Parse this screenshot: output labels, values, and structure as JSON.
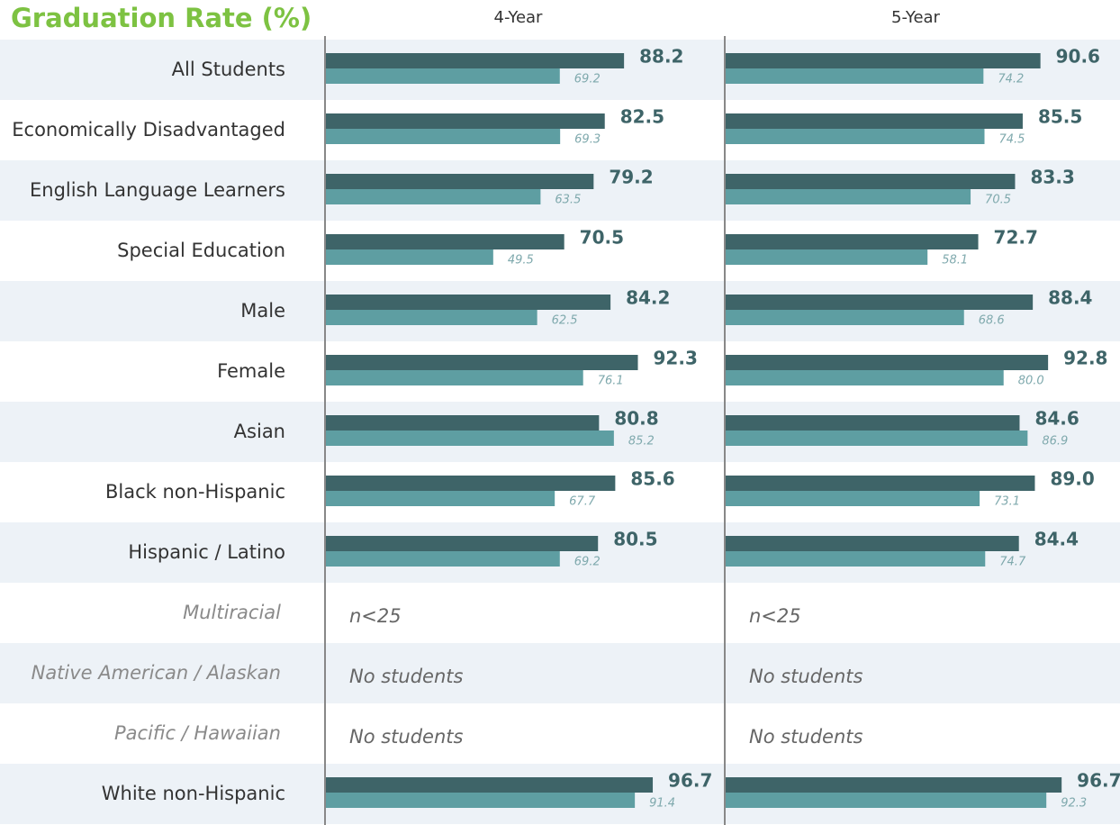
{
  "chart_data": {
    "type": "bar",
    "orientation": "horizontal",
    "title": "Graduation Rate (%)",
    "categories": [
      "All Students",
      "Economically Disadvantaged",
      "English Language Learners",
      "Special Education",
      "Male",
      "Female",
      "Asian",
      "Black non-Hispanic",
      "Hispanic / Latino",
      "Multiracial",
      "Native American / Alaskan",
      "Pacific / Hawaiian",
      "White non-Hispanic"
    ],
    "panels": [
      {
        "title": "4-Year",
        "xlim": [
          0,
          118
        ],
        "series": [
          {
            "color": "#3e6468",
            "values": [
              88.2,
              82.5,
              79.2,
              70.5,
              84.2,
              92.3,
              80.8,
              85.6,
              80.5,
              null,
              null,
              null,
              96.7
            ]
          },
          {
            "color": "#5e9ea2",
            "values": [
              69.2,
              69.3,
              63.5,
              49.5,
              62.5,
              76.1,
              85.2,
              67.7,
              69.2,
              null,
              null,
              null,
              91.4
            ],
            "value_labels": [
              "69.2",
              "69.3",
              "63.5",
              "49.5",
              "62.5",
              "76.1",
              "85.2",
              "67.7",
              "69.2",
              null,
              null,
              null,
              "91.4"
            ]
          }
        ],
        "notes": [
          null,
          null,
          null,
          null,
          null,
          null,
          null,
          null,
          null,
          "n<25",
          "No students",
          "No students",
          null
        ]
      },
      {
        "title": "5-Year",
        "xlim": [
          0,
          113.5
        ],
        "series": [
          {
            "color": "#3e6468",
            "values": [
              90.6,
              85.5,
              83.3,
              72.7,
              88.4,
              92.8,
              84.6,
              89.0,
              84.4,
              null,
              null,
              null,
              96.7
            ],
            "value_labels": [
              "90.6",
              "85.5",
              "83.3",
              "72.7",
              "88.4",
              "92.8",
              "84.6",
              "89.0",
              "84.4",
              null,
              null,
              null,
              "96.7"
            ]
          },
          {
            "color": "#5e9ea2",
            "values": [
              74.2,
              74.5,
              70.5,
              58.1,
              68.6,
              80.0,
              86.9,
              73.1,
              74.7,
              null,
              null,
              null,
              92.3
            ],
            "value_labels": [
              "74.2",
              "74.5",
              "70.5",
              "58.1",
              "68.6",
              "80.0",
              "86.9",
              "73.1",
              "74.7",
              null,
              null,
              null,
              "92.3"
            ]
          }
        ],
        "notes": [
          null,
          null,
          null,
          null,
          null,
          null,
          null,
          null,
          null,
          "n<25",
          "No students",
          "No students",
          null
        ]
      }
    ]
  }
}
